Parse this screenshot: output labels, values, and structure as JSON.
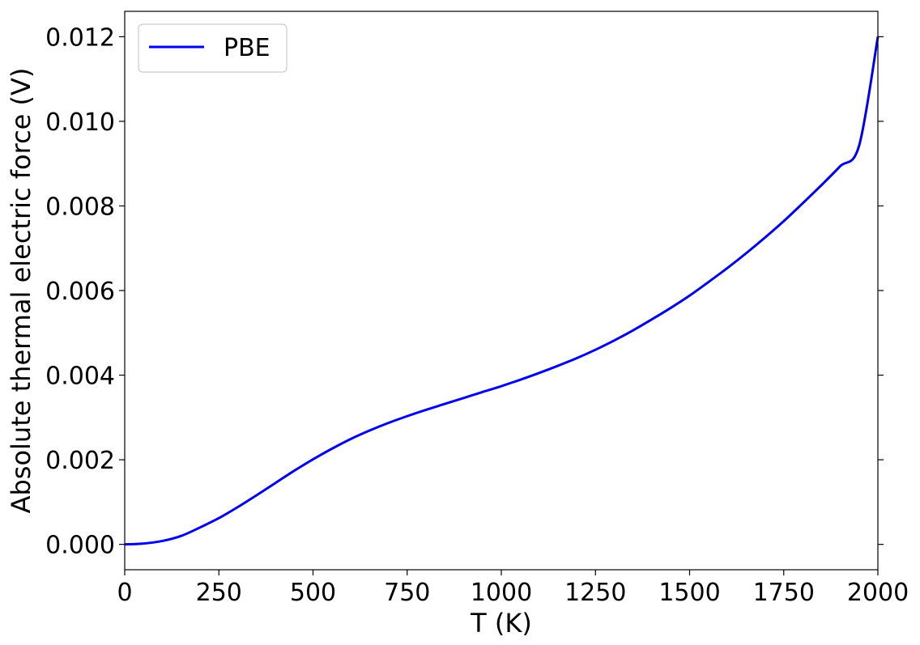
{
  "chart_data": {
    "type": "line",
    "xlabel": "T (K)",
    "ylabel": "Absolute thermal electric force (V)",
    "xlim": [
      0,
      2000
    ],
    "ylim": [
      -0.0006,
      0.0126
    ],
    "xticks": [
      0,
      250,
      500,
      750,
      1000,
      1250,
      1500,
      1750,
      2000
    ],
    "xtick_labels": [
      "0",
      "250",
      "500",
      "750",
      "1000",
      "1250",
      "1500",
      "1750",
      "2000"
    ],
    "yticks": [
      0.0,
      0.002,
      0.004,
      0.006,
      0.008,
      0.01,
      0.012
    ],
    "ytick_labels": [
      "0.000",
      "0.002",
      "0.004",
      "0.006",
      "0.008",
      "0.010",
      "0.012"
    ],
    "grid": false,
    "legend_position": "top-left",
    "series": [
      {
        "name": "PBE",
        "color": "#0000ee",
        "x": [
          0,
          50,
          100,
          150,
          200,
          250,
          300,
          350,
          400,
          450,
          500,
          550,
          600,
          650,
          700,
          750,
          800,
          850,
          900,
          950,
          1000,
          1050,
          1100,
          1150,
          1200,
          1250,
          1300,
          1350,
          1400,
          1450,
          1500,
          1550,
          1600,
          1650,
          1700,
          1750,
          1800,
          1850,
          1900,
          1950,
          2000
        ],
        "y": [
          0.0,
          2e-05,
          8e-05,
          0.0002,
          0.0004,
          0.00062,
          0.00088,
          0.00116,
          0.00145,
          0.00174,
          0.00201,
          0.00226,
          0.00249,
          0.00269,
          0.00287,
          0.00303,
          0.00318,
          0.00332,
          0.00346,
          0.0036,
          0.00374,
          0.00389,
          0.00405,
          0.00422,
          0.0044,
          0.0046,
          0.00482,
          0.00506,
          0.00532,
          0.00559,
          0.00588,
          0.0062,
          0.00653,
          0.00688,
          0.00725,
          0.00764,
          0.00806,
          0.00849,
          0.00894,
          0.00942,
          0.012
        ]
      }
    ]
  }
}
